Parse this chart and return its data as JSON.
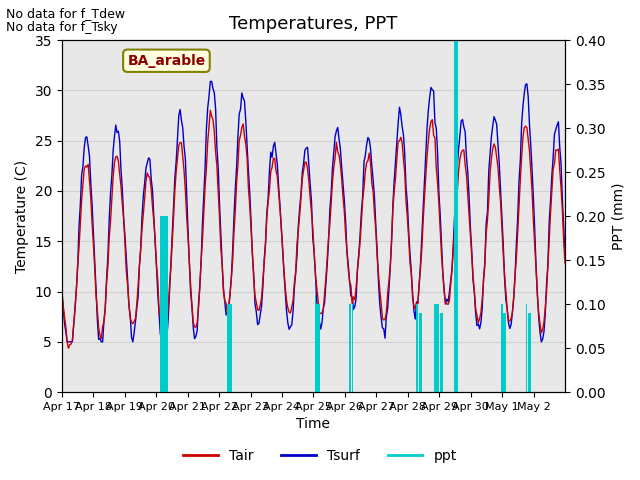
{
  "title": "Temperatures, PPT",
  "xlabel": "Time",
  "ylabel_left": "Temperature (C)",
  "ylabel_right": "PPT (mm)",
  "annotation1": "No data for f_Tdew",
  "annotation2": "No data for f_Tsky",
  "box_label": "BA_arable",
  "legend_labels": [
    "Tair",
    "Tsurf",
    "ppt"
  ],
  "tair_color": "#cc0000",
  "tsurf_color": "#0000cc",
  "ppt_color": "#00cccc",
  "grid_color": "#d0d0d0",
  "bg_color": "#e8e8e8",
  "ylim_left": [
    0,
    35
  ],
  "ylim_right": [
    0.0,
    0.4
  ],
  "yticks_left": [
    0,
    5,
    10,
    15,
    20,
    25,
    30,
    35
  ],
  "yticks_right": [
    0.0,
    0.05,
    0.1,
    0.15,
    0.2,
    0.25,
    0.3,
    0.35,
    0.4
  ],
  "xtick_labels": [
    "Apr 17",
    "Apr 18",
    "Apr 19",
    "Apr 20",
    "Apr 21",
    "Apr 22",
    "Apr 23",
    "Apr 24",
    "Apr 25",
    "Apr 26",
    "Apr 27",
    "Apr 28",
    "Apr 29",
    "Apr 30",
    "May 1",
    "May 2"
  ],
  "n_days": 16
}
